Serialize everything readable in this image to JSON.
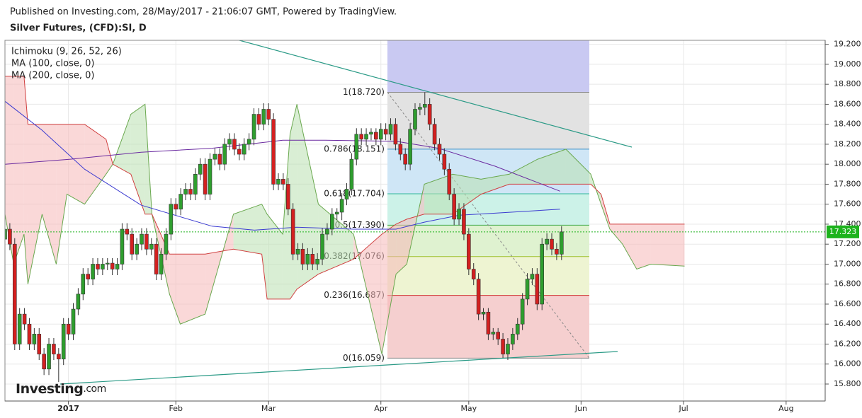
{
  "chart_data": {
    "type": "candlestick",
    "published": "Published on Investing.com, 28/May/2017 - 21:06:07 GMT, Powered by TradingView.",
    "title": "Silver Futures, (CFD):SI, D",
    "logo_main": "Investing",
    "logo_suffix": ".com",
    "up_color": "#2e9e2e",
    "down_color": "#d42020",
    "xlim": [
      -13,
      155
    ],
    "xticks": [
      {
        "value": 0,
        "label": "2017"
      },
      {
        "value": 22,
        "label": "Feb"
      },
      {
        "value": 41,
        "label": "Mar"
      },
      {
        "value": 64,
        "label": "Apr"
      },
      {
        "value": 82,
        "label": "May"
      },
      {
        "value": 105,
        "label": "Jun"
      },
      {
        "value": 126,
        "label": "Jul"
      },
      {
        "value": 147,
        "label": "Aug"
      }
    ],
    "ylim": [
      15.63,
      19.24
    ],
    "yticks": [
      {
        "value": 15.8,
        "label": "15.800"
      },
      {
        "value": 16,
        "label": "16.000"
      },
      {
        "value": 16.2,
        "label": "16.200"
      },
      {
        "value": 16.4,
        "label": "16.400"
      },
      {
        "value": 16.6,
        "label": "16.600"
      },
      {
        "value": 16.8,
        "label": "16.800"
      },
      {
        "value": 17,
        "label": "17.000"
      },
      {
        "value": 17.2,
        "label": "17.200"
      },
      {
        "value": 17.4,
        "label": "17.400"
      },
      {
        "value": 17.6,
        "label": "17.600"
      },
      {
        "value": 17.8,
        "label": "17.800"
      },
      {
        "value": 18,
        "label": "18.000"
      },
      {
        "value": 18.2,
        "label": "18.200"
      },
      {
        "value": 18.4,
        "label": "18.400"
      },
      {
        "value": 18.6,
        "label": "18.600"
      },
      {
        "value": 18.8,
        "label": "18.800"
      },
      {
        "value": 19,
        "label": "19.000"
      },
      {
        "value": 19.2,
        "label": "19.200"
      }
    ],
    "grid": true,
    "last_price": 17.323,
    "last_price_color": "#1db31d",
    "x": [
      -13,
      -12,
      -11,
      -10,
      -9,
      -8,
      -7,
      -6,
      -5,
      -4,
      -3,
      -2,
      -1,
      0,
      1,
      2,
      3,
      4,
      5,
      6,
      7,
      8,
      9,
      10,
      11,
      12,
      13,
      14,
      15,
      16,
      17,
      18,
      19,
      20,
      21,
      22,
      23,
      24,
      25,
      26,
      27,
      28,
      29,
      30,
      31,
      32,
      33,
      34,
      35,
      36,
      37,
      38,
      39,
      40,
      41,
      42,
      43,
      44,
      45,
      46,
      47,
      48,
      49,
      50,
      51,
      52,
      53,
      54,
      55,
      56,
      57,
      58,
      59,
      60,
      61,
      62,
      63,
      64,
      65,
      66,
      67,
      68,
      69,
      70,
      71,
      72,
      73,
      74,
      75,
      76,
      77,
      78,
      79,
      80,
      81,
      82,
      83,
      84,
      85,
      86,
      87,
      88,
      89,
      90,
      91,
      92,
      93,
      94,
      95,
      96,
      97,
      98,
      99,
      100,
      101
    ],
    "ohlc": [
      [
        17.25,
        17.41,
        17.19,
        17.35
      ],
      [
        17.35,
        17.41,
        17.14,
        17.2
      ],
      [
        17.2,
        17.26,
        16.14,
        16.2
      ],
      [
        16.2,
        16.56,
        16.14,
        16.5
      ],
      [
        16.5,
        16.56,
        16.34,
        16.4
      ],
      [
        16.4,
        16.46,
        16.14,
        16.2
      ],
      [
        16.2,
        16.36,
        16.14,
        16.3
      ],
      [
        16.3,
        16.36,
        16.04,
        16.1
      ],
      [
        16.1,
        16.16,
        15.89,
        15.95
      ],
      [
        15.95,
        16.26,
        15.89,
        16.2
      ],
      [
        16.2,
        16.26,
        16.04,
        16.1
      ],
      [
        16.1,
        16.16,
        15.82,
        16.05
      ],
      [
        16.05,
        16.46,
        15.99,
        16.4
      ],
      [
        16.4,
        16.46,
        16.24,
        16.3
      ],
      [
        16.3,
        16.61,
        16.24,
        16.55
      ],
      [
        16.55,
        16.76,
        16.49,
        16.7
      ],
      [
        16.7,
        16.96,
        16.64,
        16.9
      ],
      [
        16.9,
        16.96,
        16.79,
        16.85
      ],
      [
        16.85,
        17.06,
        16.79,
        17.0
      ],
      [
        17.0,
        17.06,
        16.89,
        16.95
      ],
      [
        16.95,
        17.06,
        16.89,
        17.0
      ],
      [
        17.0,
        17.06,
        16.94,
        17.01
      ],
      [
        17.01,
        17.06,
        16.89,
        16.95
      ],
      [
        16.95,
        17.06,
        16.89,
        17.0
      ],
      [
        17.0,
        17.41,
        16.94,
        17.35
      ],
      [
        17.35,
        17.41,
        17.24,
        17.3
      ],
      [
        17.3,
        17.36,
        17.04,
        17.1
      ],
      [
        17.1,
        17.26,
        17.04,
        17.2
      ],
      [
        17.2,
        17.36,
        17.14,
        17.3
      ],
      [
        17.3,
        17.36,
        17.09,
        17.15
      ],
      [
        17.15,
        17.26,
        17.09,
        17.2
      ],
      [
        17.2,
        17.26,
        16.84,
        16.9
      ],
      [
        16.9,
        17.16,
        16.84,
        17.1
      ],
      [
        17.1,
        17.36,
        17.04,
        17.3
      ],
      [
        17.3,
        17.66,
        17.24,
        17.6
      ],
      [
        17.6,
        17.66,
        17.49,
        17.55
      ],
      [
        17.55,
        17.76,
        17.49,
        17.7
      ],
      [
        17.7,
        17.81,
        17.64,
        17.75
      ],
      [
        17.75,
        17.81,
        17.64,
        17.7
      ],
      [
        17.7,
        17.96,
        17.64,
        17.9
      ],
      [
        17.9,
        18.06,
        17.84,
        18.0
      ],
      [
        18.0,
        18.06,
        17.64,
        17.7
      ],
      [
        17.7,
        18.11,
        17.64,
        18.05
      ],
      [
        18.05,
        18.16,
        17.99,
        18.1
      ],
      [
        18.1,
        18.16,
        17.94,
        18.0
      ],
      [
        18.0,
        18.26,
        17.94,
        18.2
      ],
      [
        18.2,
        18.31,
        18.14,
        18.25
      ],
      [
        18.25,
        18.31,
        18.09,
        18.15
      ],
      [
        18.15,
        18.21,
        18.04,
        18.1
      ],
      [
        18.1,
        18.26,
        18.04,
        18.2
      ],
      [
        18.2,
        18.31,
        18.14,
        18.25
      ],
      [
        18.25,
        18.56,
        18.19,
        18.5
      ],
      [
        18.5,
        18.56,
        18.34,
        18.4
      ],
      [
        18.4,
        18.61,
        18.34,
        18.55
      ],
      [
        18.55,
        18.61,
        18.39,
        18.45
      ],
      [
        18.45,
        18.51,
        17.74,
        17.8
      ],
      [
        17.8,
        17.91,
        17.74,
        17.85
      ],
      [
        17.85,
        17.91,
        17.74,
        17.8
      ],
      [
        17.8,
        17.86,
        17.49,
        17.55
      ],
      [
        17.55,
        17.61,
        17.04,
        17.1
      ],
      [
        17.1,
        17.21,
        17.04,
        17.15
      ],
      [
        17.15,
        17.21,
        16.94,
        17.0
      ],
      [
        17.0,
        17.16,
        16.94,
        17.1
      ],
      [
        17.1,
        17.16,
        16.94,
        17.0
      ],
      [
        17.0,
        17.11,
        16.94,
        17.05
      ],
      [
        17.05,
        17.36,
        16.99,
        17.3
      ],
      [
        17.3,
        17.41,
        17.24,
        17.35
      ],
      [
        17.35,
        17.56,
        17.29,
        17.5
      ],
      [
        17.5,
        17.56,
        17.44,
        17.52
      ],
      [
        17.52,
        17.71,
        17.44,
        17.65
      ],
      [
        17.65,
        17.81,
        17.59,
        17.75
      ],
      [
        17.75,
        18.11,
        17.69,
        18.05
      ],
      [
        18.05,
        18.36,
        17.99,
        18.3
      ],
      [
        18.3,
        18.36,
        18.19,
        18.25
      ],
      [
        18.25,
        18.36,
        18.19,
        18.3
      ],
      [
        18.3,
        18.36,
        18.24,
        18.32
      ],
      [
        18.32,
        18.36,
        18.19,
        18.25
      ],
      [
        18.25,
        18.41,
        18.19,
        18.35
      ],
      [
        18.35,
        18.41,
        18.24,
        18.3
      ],
      [
        18.3,
        18.46,
        18.24,
        18.4
      ],
      [
        18.4,
        18.46,
        18.14,
        18.2
      ],
      [
        18.2,
        18.26,
        18.04,
        18.1
      ],
      [
        18.1,
        18.16,
        17.94,
        18.0
      ],
      [
        18.0,
        18.41,
        17.94,
        18.35
      ],
      [
        18.35,
        18.61,
        18.29,
        18.55
      ],
      [
        18.55,
        18.61,
        18.49,
        18.57
      ],
      [
        18.57,
        18.72,
        18.49,
        18.6
      ],
      [
        18.6,
        18.66,
        18.34,
        18.4
      ],
      [
        18.4,
        18.46,
        18.14,
        18.2
      ],
      [
        18.2,
        18.26,
        18.04,
        18.1
      ],
      [
        18.1,
        18.16,
        17.89,
        17.95
      ],
      [
        17.95,
        18.01,
        17.64,
        17.7
      ],
      [
        17.7,
        17.76,
        17.39,
        17.45
      ],
      [
        17.45,
        17.61,
        17.39,
        17.55
      ],
      [
        17.55,
        17.61,
        17.24,
        17.3
      ],
      [
        17.3,
        17.36,
        16.89,
        16.95
      ],
      [
        16.95,
        17.01,
        16.79,
        16.85
      ],
      [
        16.85,
        16.91,
        16.44,
        16.5
      ],
      [
        16.5,
        16.56,
        16.44,
        16.52
      ],
      [
        16.52,
        16.56,
        16.24,
        16.3
      ],
      [
        16.3,
        16.36,
        16.24,
        16.32
      ],
      [
        16.32,
        16.36,
        16.19,
        16.25
      ],
      [
        16.25,
        16.31,
        16.06,
        16.1
      ],
      [
        16.1,
        16.26,
        16.04,
        16.2
      ],
      [
        16.2,
        16.36,
        16.14,
        16.3
      ],
      [
        16.3,
        16.46,
        16.24,
        16.4
      ],
      [
        16.4,
        16.71,
        16.34,
        16.65
      ],
      [
        16.65,
        16.91,
        16.59,
        16.85
      ],
      [
        16.85,
        16.96,
        16.79,
        16.9
      ],
      [
        16.9,
        16.96,
        16.54,
        16.6
      ],
      [
        16.6,
        17.26,
        16.54,
        17.2
      ],
      [
        17.2,
        17.31,
        17.14,
        17.25
      ],
      [
        17.25,
        17.31,
        17.09,
        17.15
      ],
      [
        17.15,
        17.21,
        17.04,
        17.1
      ],
      [
        17.1,
        17.38,
        17.04,
        17.323
      ]
    ],
    "ichimoku": {
      "name": "Ichimoku (9, 26, 52, 26)",
      "color_a": "#6aa84f",
      "color_b": "#d04040",
      "fill_up": "#b9e0b0",
      "fill_down": "#f5b8b8",
      "x": [
        -13,
        -11.2,
        -9.1,
        -8.3,
        -5.4,
        -2.5,
        -0.3,
        3.3,
        7.7,
        9.1,
        12.8,
        15.7,
        17.1,
        20.7,
        22.9,
        28,
        33.8,
        39.6,
        40.7,
        43.9,
        45.4,
        46.8,
        51.2,
        58.4,
        64.2,
        67.1,
        69.3,
        72.9,
        78.7,
        84.5,
        90.3,
        96.1,
        101.9,
        107,
        109.1,
        110.9,
        113.5,
        116.4,
        119.3,
        126.2
      ],
      "span_a": [
        17.5,
        17.0,
        17.3,
        16.8,
        17.5,
        17.0,
        17.7,
        17.6,
        17.9,
        18.0,
        18.5,
        18.6,
        17.5,
        16.7,
        16.4,
        16.5,
        17.5,
        17.6,
        17.5,
        17.3,
        18.3,
        18.6,
        17.6,
        17.3,
        16.1,
        16.9,
        17.0,
        17.8,
        17.9,
        17.85,
        17.9,
        18.05,
        18.15,
        17.9,
        17.6,
        17.35,
        17.2,
        16.95,
        17.0,
        16.98
      ],
      "span_b": [
        18.88,
        18.88,
        18.88,
        18.4,
        18.4,
        18.4,
        18.4,
        18.4,
        18.25,
        18.0,
        17.9,
        17.5,
        17.5,
        17.1,
        17.1,
        17.1,
        17.15,
        17.1,
        16.65,
        16.65,
        16.65,
        16.75,
        16.9,
        17.05,
        17.3,
        17.4,
        17.45,
        17.5,
        17.5,
        17.7,
        17.8,
        17.8,
        17.8,
        17.8,
        17.7,
        17.4,
        17.4,
        17.4,
        17.4,
        17.4
      ]
    },
    "series": [
      {
        "name": "MA (100, close, 0)",
        "color": "#3a3ad0",
        "x": [
          -13,
          -5.4,
          3.3,
          14.9,
          29.4,
          38.1,
          46.8,
          58.4,
          67.1,
          72.9,
          80.1,
          87.4,
          100.7
        ],
        "values": [
          18.63,
          18.34,
          17.95,
          17.59,
          17.38,
          17.34,
          17.37,
          17.35,
          17.35,
          17.42,
          17.49,
          17.51,
          17.55
        ]
      },
      {
        "name": "MA (200, close, 0)",
        "color": "#6a2aa0",
        "x": [
          -13,
          0.4,
          14.9,
          29.4,
          43.9,
          52.6,
          67.1,
          75.8,
          87.4,
          100.7
        ],
        "values": [
          18.0,
          18.05,
          18.12,
          18.16,
          18.24,
          18.24,
          18.23,
          18.16,
          17.98,
          17.73
        ]
      }
    ],
    "fib": [
      {
        "value": 18.72,
        "label": "1(18.720)",
        "color": "#888888",
        "fill": "#e2e2e2"
      },
      {
        "value": 18.151,
        "label": "0.786(18.151)",
        "color": "#3a8fc8",
        "fill": "#cfe6f6"
      },
      {
        "value": 17.704,
        "label": "0.618(17.704)",
        "color": "#2fb89a",
        "fill": "#ccf2e8"
      },
      {
        "value": 17.39,
        "label": "0.5(17.390)",
        "color": "#3fa84a",
        "fill": "#dff2d0"
      },
      {
        "value": 17.076,
        "label": "0.382(17.076)",
        "color": "#9fbf2a",
        "fill": "#eef4d2"
      },
      {
        "value": 16.687,
        "label": "0.236(16.687)",
        "color": "#d03030",
        "fill": "#f5cfcf"
      },
      {
        "value": 16.059,
        "label": "0(16.059)",
        "color": "#888888",
        "fill": "#ffffff"
      }
    ]
  }
}
